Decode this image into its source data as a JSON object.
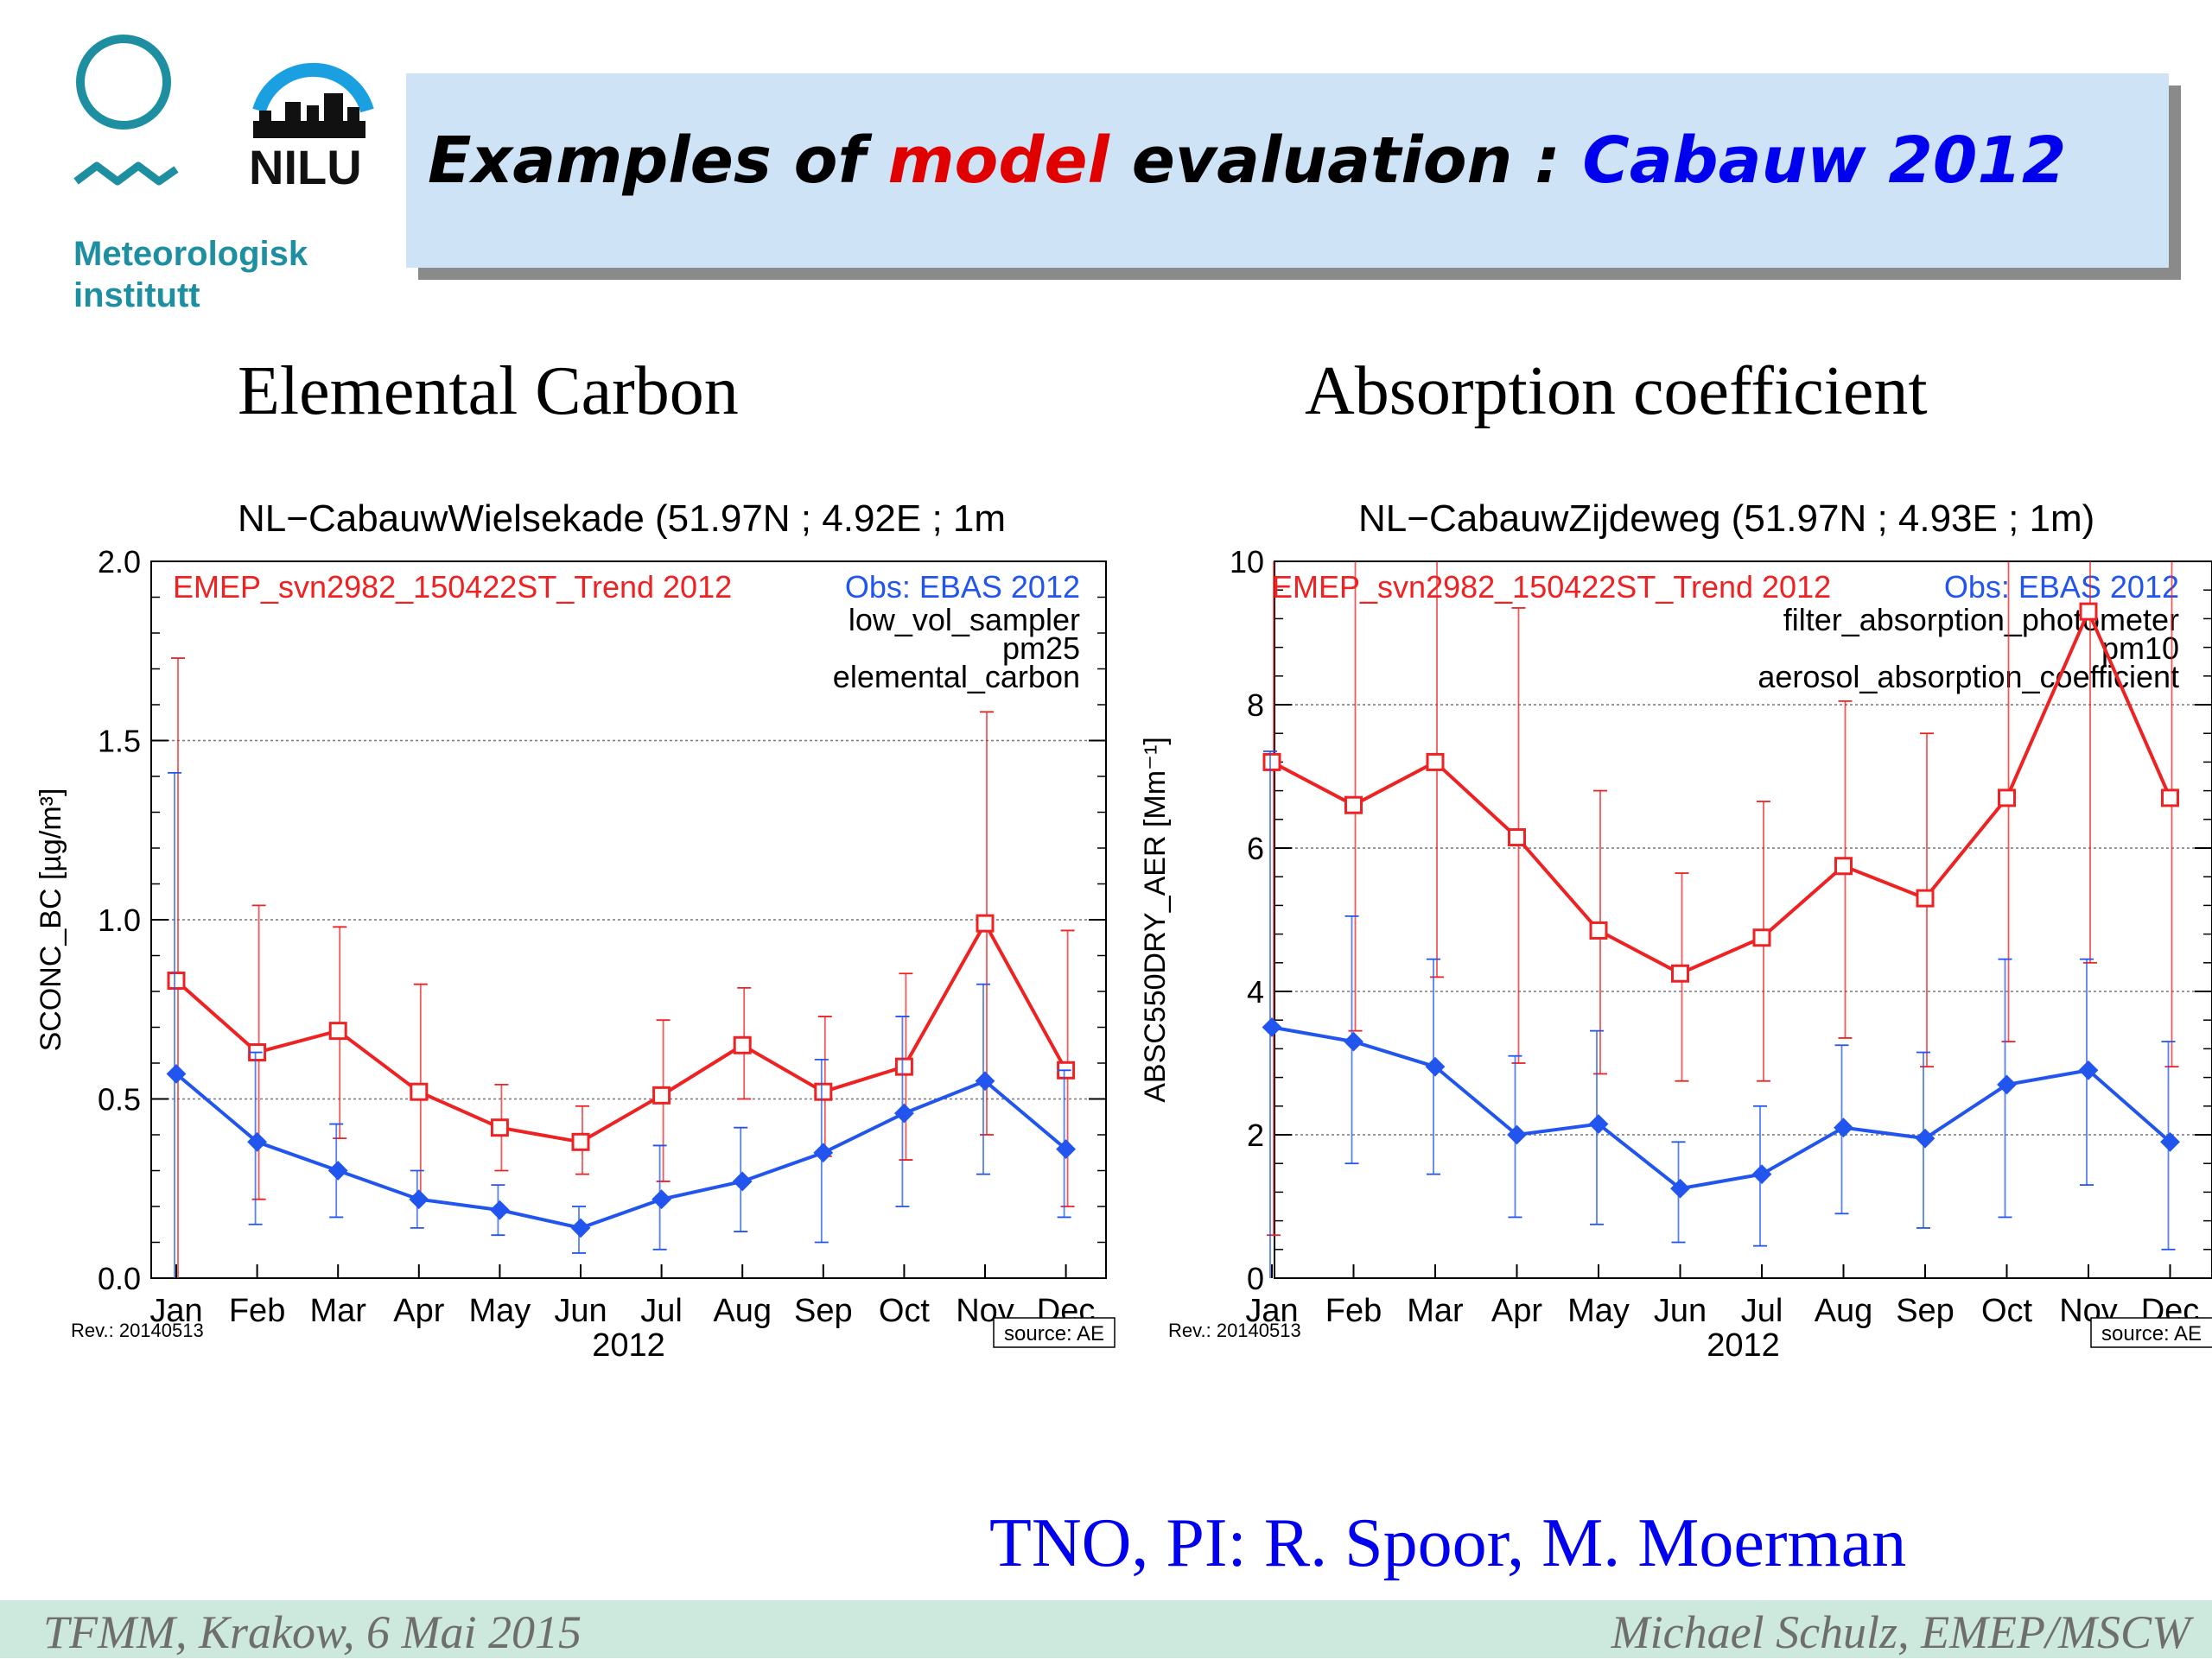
{
  "logos": {
    "met_line1": "Meteorologisk",
    "met_line2": "institutt",
    "nilu": "NILU"
  },
  "slide_title": {
    "part1": "Examples of ",
    "part2": "model",
    "part3": " evaluation : ",
    "part4": "Cabauw 2012"
  },
  "left_heading": "Elemental Carbon",
  "right_heading": "Absorption coefficient",
  "credit": "TNO, PI: R. Spoor, M. Moerman",
  "footer": {
    "left": "TFMM, Krakow, 6 Mai 2015",
    "right": "Michael Schulz, EMEP/MSCW"
  },
  "colors": {
    "model": "#ee2222",
    "obs": "#2255ee",
    "title_box": "#cfe3f7",
    "footer": "#cde8dc"
  },
  "chart_data": [
    {
      "type": "line",
      "title": "NL−CabauwWielsekade (51.97N ; 4.92E ; 1m",
      "xlabel": "2012",
      "ylabel": "SCONC_BC [µg/m³]",
      "ylim": [
        0,
        2.0
      ],
      "yticks": [
        "0.0",
        "0.5",
        "1.0",
        "1.5",
        "2.0"
      ],
      "ytick_values": [
        0,
        0.5,
        1.0,
        1.5,
        2.0
      ],
      "categories": [
        "Jan",
        "Feb",
        "Mar",
        "Apr",
        "May",
        "Jun",
        "Jul",
        "Aug",
        "Sep",
        "Oct",
        "Nov",
        "Dec"
      ],
      "rev": "Rev.: 20140513",
      "source": "source: AE",
      "legend_model": "EMEP_svn2982_150422ST_Trend 2012",
      "legend_obs": "Obs: EBAS 2012",
      "info": [
        "low_vol_sampler",
        "pm25",
        "elemental_carbon"
      ],
      "grid": true,
      "series": [
        {
          "name": "EMEP_svn2982_150422ST_Trend 2012",
          "marker": "square",
          "values": [
            0.83,
            0.63,
            0.69,
            0.52,
            0.42,
            0.38,
            0.51,
            0.65,
            0.52,
            0.59,
            0.99,
            0.58
          ],
          "err_hi": [
            1.73,
            1.04,
            0.98,
            0.82,
            0.54,
            0.48,
            0.72,
            0.81,
            0.73,
            0.85,
            1.58,
            0.97
          ],
          "err_lo": [
            0.0,
            0.22,
            0.39,
            0.22,
            0.3,
            0.29,
            0.27,
            0.5,
            0.34,
            0.33,
            0.4,
            0.2
          ]
        },
        {
          "name": "Obs: EBAS 2012",
          "marker": "diamond",
          "values": [
            0.57,
            0.38,
            0.3,
            0.22,
            0.19,
            0.14,
            0.22,
            0.27,
            0.35,
            0.46,
            0.55,
            0.36
          ],
          "err_hi": [
            1.41,
            0.63,
            0.43,
            0.3,
            0.26,
            0.2,
            0.37,
            0.42,
            0.61,
            0.73,
            0.82,
            0.58
          ],
          "err_lo": [
            0.0,
            0.15,
            0.17,
            0.14,
            0.12,
            0.07,
            0.08,
            0.13,
            0.1,
            0.2,
            0.29,
            0.17
          ]
        }
      ]
    },
    {
      "type": "line",
      "title": "NL−CabauwZijdeweg (51.97N ; 4.93E ; 1m)",
      "xlabel": "2012",
      "ylabel": "ABSC550DRY_AER [Mm⁻¹]",
      "ylim": [
        0,
        10
      ],
      "yticks": [
        "0",
        "2",
        "4",
        "6",
        "8",
        "10"
      ],
      "ytick_values": [
        0,
        2,
        4,
        6,
        8,
        10
      ],
      "categories": [
        "Jan",
        "Feb",
        "Mar",
        "Apr",
        "May",
        "Jun",
        "Jul",
        "Aug",
        "Sep",
        "Oct",
        "Nov",
        "Dec"
      ],
      "rev": "Rev.: 20140513",
      "source": "source: AE",
      "legend_model": "EMEP_svn2982_150422ST_Trend 2012",
      "legend_obs": "Obs: EBAS 2012",
      "info": [
        "filter_absorption_photometer",
        "pm10",
        "aerosol_absorption_coefficient"
      ],
      "grid": true,
      "series": [
        {
          "name": "EMEP_svn2982_150422ST_Trend 2012",
          "marker": "square",
          "values": [
            7.2,
            6.6,
            7.2,
            6.15,
            4.85,
            4.25,
            4.75,
            5.75,
            5.3,
            6.7,
            9.3,
            6.7
          ],
          "err_hi": [
            10,
            10,
            10,
            9.35,
            6.8,
            5.65,
            6.65,
            8.05,
            7.6,
            10,
            10,
            10
          ],
          "err_lo": [
            0.6,
            3.45,
            4.2,
            3.0,
            2.85,
            2.75,
            2.75,
            3.35,
            2.95,
            3.3,
            4.4,
            2.95
          ]
        },
        {
          "name": "Obs: EBAS 2012",
          "marker": "diamond",
          "values": [
            3.5,
            3.3,
            2.95,
            2.0,
            2.15,
            1.25,
            1.45,
            2.1,
            1.95,
            2.7,
            2.9,
            1.9
          ],
          "err_hi": [
            7.35,
            5.05,
            4.45,
            3.1,
            3.45,
            1.9,
            2.4,
            3.25,
            3.15,
            4.45,
            4.45,
            3.3
          ],
          "err_lo": [
            0.0,
            1.6,
            1.45,
            0.85,
            0.75,
            0.5,
            0.45,
            0.9,
            0.7,
            0.85,
            1.3,
            0.4
          ]
        }
      ]
    }
  ]
}
